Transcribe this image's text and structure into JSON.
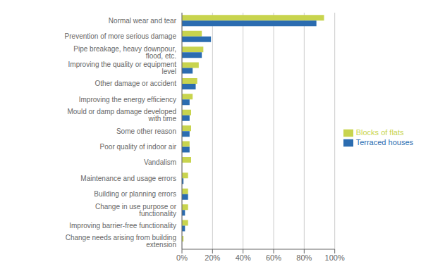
{
  "chart_data": {
    "type": "bar",
    "orientation": "horizontal",
    "categories": [
      "Normal wear and tear",
      "Prevention of more serious damage",
      "Pipe breakage, heavy downpour, flood, etc.",
      "Improving the quality or equipment level",
      "Other damage or accident",
      "Improving the energy efficiency",
      "Mould or damp damage developed with time",
      "Some other reason",
      "Poor quality of indoor air",
      "Vandalism",
      "Maintenance and usage errors",
      "Building or planning errors",
      "Change in use purpose or functionality",
      "Improving barrier-free functionality",
      "Change needs arising from building extension"
    ],
    "series": [
      {
        "name": "Blocks of flats",
        "color": "#c8d44e",
        "values": [
          93,
          13,
          14,
          11,
          10,
          7,
          6,
          6,
          5,
          6,
          4,
          4,
          4,
          4,
          1
        ]
      },
      {
        "name": "Terraced houses",
        "color": "#2b6cb0",
        "values": [
          88,
          19,
          13,
          7,
          9,
          5,
          5,
          5,
          5,
          0,
          1,
          4,
          2,
          2,
          0
        ]
      }
    ],
    "xlim": [
      0,
      100
    ],
    "xticks": [
      {
        "value": 0,
        "label": "0%"
      },
      {
        "value": 20,
        "label": "20%"
      },
      {
        "value": 40,
        "label": "40%"
      },
      {
        "value": 60,
        "label": "60%"
      },
      {
        "value": 80,
        "label": "80%"
      },
      {
        "value": 100,
        "label": "100%"
      }
    ],
    "grid": true,
    "legend": "right"
  }
}
